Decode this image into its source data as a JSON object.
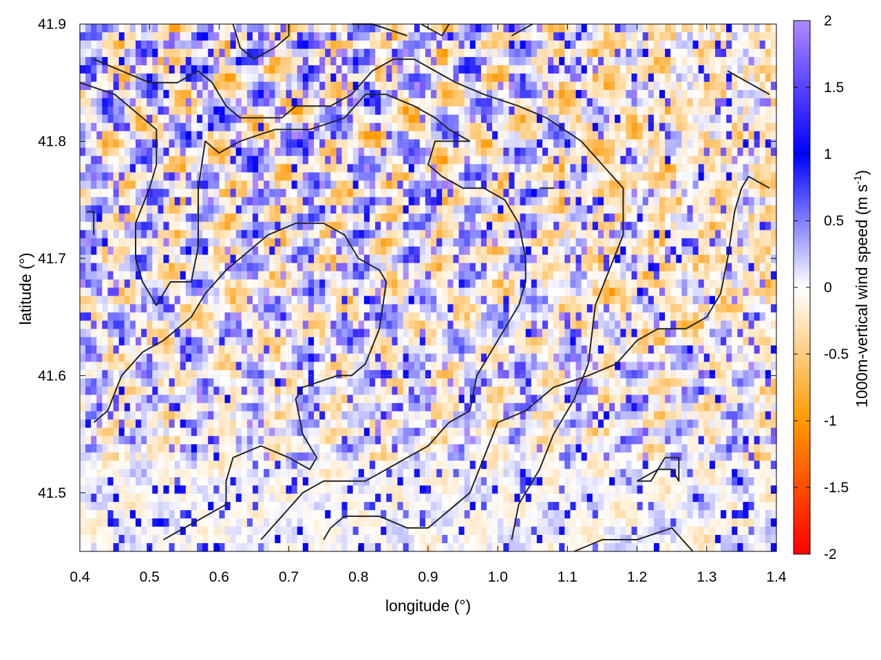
{
  "chart_data": {
    "type": "heatmap",
    "title": "",
    "xlabel": "longitude (°)",
    "ylabel": "latitude (°)",
    "xlim": [
      0.4,
      1.4
    ],
    "ylim": [
      41.45,
      41.9
    ],
    "x_ticks": [
      {
        "value": 0.4,
        "label": "0.4"
      },
      {
        "value": 0.5,
        "label": "0.5"
      },
      {
        "value": 0.6,
        "label": "0.6"
      },
      {
        "value": 0.7,
        "label": "0.7"
      },
      {
        "value": 0.8,
        "label": "0.8"
      },
      {
        "value": 0.9,
        "label": "0.9"
      },
      {
        "value": 1.0,
        "label": "1.0"
      },
      {
        "value": 1.1,
        "label": "1.1"
      },
      {
        "value": 1.2,
        "label": "1.2"
      },
      {
        "value": 1.3,
        "label": "1.3"
      },
      {
        "value": 1.4,
        "label": "1.4"
      }
    ],
    "y_ticks": [
      {
        "value": 41.5,
        "label": "41.5"
      },
      {
        "value": 41.6,
        "label": "41.6"
      },
      {
        "value": 41.7,
        "label": "41.7"
      },
      {
        "value": 41.8,
        "label": "41.8"
      },
      {
        "value": 41.9,
        "label": "41.9"
      }
    ],
    "grid": true,
    "colorbar": {
      "label_main": "1000m-vertical wind speed (m s",
      "label_sup": "-1",
      "label_close": ")",
      "range": [
        -2,
        2
      ],
      "ticks": [
        {
          "value": 2,
          "label": "2"
        },
        {
          "value": 1.5,
          "label": "1.5"
        },
        {
          "value": 1,
          "label": "1"
        },
        {
          "value": 0.5,
          "label": "0.5"
        },
        {
          "value": 0,
          "label": "0"
        },
        {
          "value": -0.5,
          "label": "-0.5"
        },
        {
          "value": -1,
          "label": "-1"
        },
        {
          "value": -1.5,
          "label": "-1.5"
        },
        {
          "value": -2,
          "label": "-2"
        }
      ],
      "stops": [
        {
          "value": -2,
          "color": "#ff0000"
        },
        {
          "value": -1,
          "color": "#ff9900"
        },
        {
          "value": 0,
          "color": "#ffffff"
        },
        {
          "value": 1,
          "color": "#0000ff"
        },
        {
          "value": 2,
          "color": "#b088ff"
        }
      ]
    },
    "grid_resolution": {
      "nx": 125,
      "ny": 64
    },
    "contour_color": "#222222",
    "contours": [
      [
        [
          0.4,
          41.85
        ],
        [
          0.45,
          41.84
        ],
        [
          0.49,
          41.82
        ],
        [
          0.51,
          41.81
        ],
        [
          0.51,
          41.78
        ],
        [
          0.5,
          41.76
        ],
        [
          0.48,
          41.73
        ],
        [
          0.48,
          41.7
        ],
        [
          0.49,
          41.68
        ],
        [
          0.51,
          41.66
        ],
        [
          0.53,
          41.68
        ],
        [
          0.56,
          41.68
        ],
        [
          0.57,
          41.71
        ],
        [
          0.57,
          41.76
        ],
        [
          0.58,
          41.8
        ],
        [
          0.6,
          41.79
        ],
        [
          0.63,
          41.8
        ],
        [
          0.68,
          41.81
        ],
        [
          0.73,
          41.81
        ],
        [
          0.78,
          41.82
        ],
        [
          0.81,
          41.84
        ],
        [
          0.84,
          41.84
        ],
        [
          0.88,
          41.83
        ],
        [
          0.91,
          41.82
        ],
        [
          0.93,
          41.81
        ],
        [
          0.96,
          41.8
        ]
      ],
      [
        [
          0.42,
          41.87
        ],
        [
          0.46,
          41.86
        ],
        [
          0.5,
          41.85
        ],
        [
          0.54,
          41.85
        ],
        [
          0.57,
          41.86
        ],
        [
          0.59,
          41.85
        ],
        [
          0.61,
          41.83
        ],
        [
          0.63,
          41.82
        ],
        [
          0.66,
          41.82
        ],
        [
          0.69,
          41.82
        ],
        [
          0.71,
          41.83
        ],
        [
          0.73,
          41.83
        ],
        [
          0.76,
          41.83
        ],
        [
          0.79,
          41.84
        ],
        [
          0.82,
          41.86
        ],
        [
          0.85,
          41.87
        ],
        [
          0.88,
          41.87
        ],
        [
          0.91,
          41.86
        ],
        [
          0.94,
          41.85
        ],
        [
          0.98,
          41.84
        ],
        [
          1.03,
          41.83
        ],
        [
          1.07,
          41.82
        ],
        [
          1.12,
          41.8
        ],
        [
          1.15,
          41.78
        ],
        [
          1.18,
          41.76
        ],
        [
          1.18,
          41.72
        ],
        [
          1.16,
          41.69
        ],
        [
          1.14,
          41.66
        ],
        [
          1.13,
          41.61
        ],
        [
          1.11,
          41.58
        ],
        [
          1.08,
          41.55
        ],
        [
          1.06,
          41.52
        ],
        [
          1.03,
          41.49
        ],
        [
          1.02,
          41.46
        ]
      ],
      [
        [
          0.62,
          41.9
        ],
        [
          0.63,
          41.88
        ],
        [
          0.65,
          41.87
        ],
        [
          0.68,
          41.88
        ],
        [
          0.7,
          41.89
        ],
        [
          0.7,
          41.9
        ]
      ],
      [
        [
          0.79,
          41.9
        ],
        [
          0.82,
          41.9
        ],
        [
          0.87,
          41.89
        ]
      ],
      [
        [
          0.89,
          41.9
        ],
        [
          0.92,
          41.89
        ],
        [
          0.93,
          41.9
        ]
      ],
      [
        [
          1.02,
          41.89
        ],
        [
          1.05,
          41.9
        ]
      ],
      [
        [
          0.41,
          41.74
        ],
        [
          0.42,
          41.74
        ],
        [
          0.42,
          41.72
        ]
      ],
      [
        [
          0.42,
          41.56
        ],
        [
          0.44,
          41.57
        ],
        [
          0.46,
          41.6
        ],
        [
          0.49,
          41.62
        ],
        [
          0.52,
          41.63
        ],
        [
          0.56,
          41.65
        ],
        [
          0.58,
          41.67
        ],
        [
          0.61,
          41.69
        ],
        [
          0.63,
          41.7
        ],
        [
          0.65,
          41.71
        ],
        [
          0.67,
          41.72
        ],
        [
          0.71,
          41.73
        ],
        [
          0.75,
          41.73
        ],
        [
          0.78,
          41.72
        ],
        [
          0.8,
          41.7
        ],
        [
          0.83,
          41.69
        ],
        [
          0.84,
          41.68
        ],
        [
          0.83,
          41.64
        ],
        [
          0.81,
          41.61
        ],
        [
          0.79,
          41.6
        ],
        [
          0.77,
          41.6
        ],
        [
          0.72,
          41.59
        ],
        [
          0.71,
          41.58
        ],
        [
          0.72,
          41.55
        ],
        [
          0.74,
          41.53
        ],
        [
          0.73,
          41.52
        ],
        [
          0.7,
          41.53
        ],
        [
          0.66,
          41.54
        ],
        [
          0.62,
          41.53
        ],
        [
          0.61,
          41.51
        ],
        [
          0.61,
          41.49
        ],
        [
          0.58,
          41.48
        ],
        [
          0.55,
          41.47
        ],
        [
          0.52,
          41.46
        ]
      ],
      [
        [
          0.66,
          41.46
        ],
        [
          0.69,
          41.48
        ],
        [
          0.72,
          41.5
        ],
        [
          0.75,
          41.51
        ],
        [
          0.78,
          41.51
        ],
        [
          0.81,
          41.51
        ],
        [
          0.84,
          41.52
        ],
        [
          0.87,
          41.53
        ],
        [
          0.9,
          41.54
        ],
        [
          0.93,
          41.56
        ],
        [
          0.96,
          41.57
        ],
        [
          0.97,
          41.6
        ],
        [
          0.99,
          41.62
        ],
        [
          1.01,
          41.64
        ],
        [
          1.03,
          41.66
        ],
        [
          1.04,
          41.68
        ],
        [
          1.04,
          41.7
        ],
        [
          1.03,
          41.73
        ],
        [
          1.01,
          41.75
        ],
        [
          0.98,
          41.76
        ],
        [
          0.95,
          41.76
        ],
        [
          0.92,
          41.77
        ],
        [
          0.9,
          41.78
        ],
        [
          0.91,
          41.8
        ],
        [
          0.93,
          41.8
        ],
        [
          0.96,
          41.8
        ]
      ],
      [
        [
          0.75,
          41.46
        ],
        [
          0.76,
          41.47
        ],
        [
          0.78,
          41.48
        ],
        [
          0.8,
          41.48
        ],
        [
          0.83,
          41.48
        ],
        [
          0.87,
          41.47
        ],
        [
          0.9,
          41.47
        ],
        [
          0.92,
          41.48
        ],
        [
          0.94,
          41.49
        ],
        [
          0.96,
          41.5
        ],
        [
          0.98,
          41.53
        ],
        [
          1.0,
          41.56
        ],
        [
          1.04,
          41.57
        ],
        [
          1.08,
          41.59
        ],
        [
          1.13,
          41.6
        ],
        [
          1.17,
          41.61
        ],
        [
          1.2,
          41.63
        ],
        [
          1.23,
          41.64
        ],
        [
          1.25,
          41.64
        ],
        [
          1.27,
          41.64
        ],
        [
          1.3,
          41.65
        ],
        [
          1.32,
          41.67
        ],
        [
          1.33,
          41.7
        ],
        [
          1.34,
          41.74
        ],
        [
          1.35,
          41.76
        ],
        [
          1.36,
          41.77
        ],
        [
          1.39,
          41.76
        ]
      ],
      [
        [
          1.11,
          41.45
        ],
        [
          1.15,
          41.46
        ],
        [
          1.2,
          41.46
        ],
        [
          1.25,
          41.47
        ],
        [
          1.28,
          41.45
        ]
      ],
      [
        [
          1.2,
          41.51
        ],
        [
          1.23,
          41.52
        ],
        [
          1.25,
          41.52
        ],
        [
          1.26,
          41.51
        ],
        [
          1.26,
          41.53
        ],
        [
          1.24,
          41.53
        ],
        [
          1.22,
          41.51
        ],
        [
          1.2,
          41.51
        ]
      ],
      [
        [
          1.06,
          41.76
        ],
        [
          1.07,
          41.76
        ],
        [
          1.08,
          41.76
        ],
        [
          1.07,
          41.76
        ],
        [
          1.06,
          41.76
        ]
      ],
      [
        [
          1.33,
          41.86
        ],
        [
          1.36,
          41.85
        ],
        [
          1.39,
          41.84
        ]
      ]
    ]
  }
}
